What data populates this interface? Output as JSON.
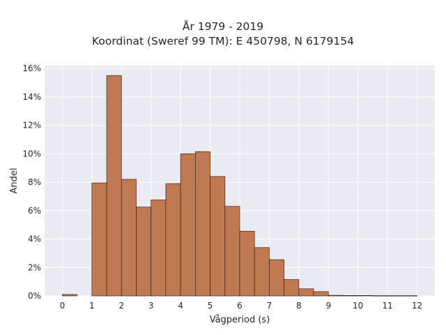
{
  "chart_data": {
    "type": "bar",
    "title": "År 1979 - 2019",
    "subtitle": "Koordinat (Sweref 99 TM): E 450798, N 6179154",
    "xlabel": "Vågperiod (s)",
    "ylabel": "Andel",
    "xlim": [
      -0.6,
      12.6
    ],
    "ylim": [
      0,
      16.2
    ],
    "x_ticks": [
      0,
      1,
      2,
      3,
      4,
      5,
      6,
      7,
      8,
      9,
      10,
      11,
      12
    ],
    "y_ticks": [
      0,
      2,
      4,
      6,
      8,
      10,
      12,
      14,
      16
    ],
    "y_tick_suffix": "%",
    "grid": true,
    "bar_color": "#c07a52",
    "bar_edge_color": "#3a2418",
    "plot_background": "#eaeaf2",
    "bins": [
      {
        "start": 0.0,
        "end": 0.5,
        "value": 0.1
      },
      {
        "start": 0.5,
        "end": 1.0,
        "value": 0.0
      },
      {
        "start": 1.0,
        "end": 1.5,
        "value": 7.95
      },
      {
        "start": 1.5,
        "end": 2.0,
        "value": 15.5
      },
      {
        "start": 2.0,
        "end": 2.5,
        "value": 8.2
      },
      {
        "start": 2.5,
        "end": 3.0,
        "value": 6.25
      },
      {
        "start": 3.0,
        "end": 3.5,
        "value": 6.75
      },
      {
        "start": 3.5,
        "end": 4.0,
        "value": 7.9
      },
      {
        "start": 4.0,
        "end": 4.5,
        "value": 10.0
      },
      {
        "start": 4.5,
        "end": 5.0,
        "value": 10.15
      },
      {
        "start": 5.0,
        "end": 5.5,
        "value": 8.4
      },
      {
        "start": 5.5,
        "end": 6.0,
        "value": 6.3
      },
      {
        "start": 6.0,
        "end": 6.5,
        "value": 4.55
      },
      {
        "start": 6.5,
        "end": 7.0,
        "value": 3.4
      },
      {
        "start": 7.0,
        "end": 7.5,
        "value": 2.55
      },
      {
        "start": 7.5,
        "end": 8.0,
        "value": 1.15
      },
      {
        "start": 8.0,
        "end": 8.5,
        "value": 0.5
      },
      {
        "start": 8.5,
        "end": 9.0,
        "value": 0.3
      },
      {
        "start": 9.0,
        "end": 9.5,
        "value": 0.04
      },
      {
        "start": 9.5,
        "end": 10.0,
        "value": 0.03
      },
      {
        "start": 10.0,
        "end": 10.5,
        "value": 0.03
      },
      {
        "start": 10.5,
        "end": 11.0,
        "value": 0.02
      },
      {
        "start": 11.0,
        "end": 11.5,
        "value": 0.02
      },
      {
        "start": 11.5,
        "end": 12.0,
        "value": 0.02
      }
    ]
  }
}
